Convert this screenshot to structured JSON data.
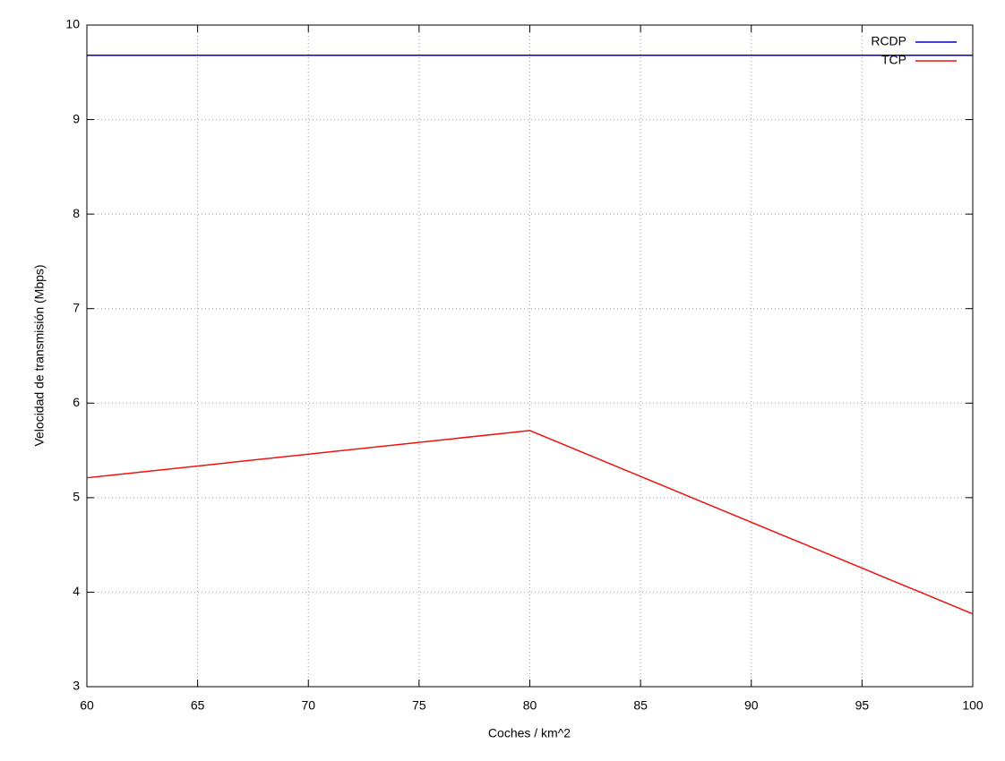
{
  "chart_data": {
    "type": "line",
    "x_label": "Coches / km^2",
    "y_label": "Velocidad de transmisión (Mbps)",
    "x": [
      60,
      80,
      100
    ],
    "series": [
      {
        "name": "RCDP",
        "color": "#0000cc",
        "values": [
          9.68,
          9.68,
          9.68
        ]
      },
      {
        "name": "TCP",
        "color": "#ee1111",
        "values": [
          5.21,
          5.71,
          3.77
        ]
      }
    ],
    "xlim": [
      60,
      100
    ],
    "xticks": [
      60,
      65,
      70,
      75,
      80,
      85,
      90,
      95,
      100
    ],
    "ylim": [
      3,
      10
    ],
    "yticks": [
      3,
      4,
      5,
      6,
      7,
      8,
      9,
      10
    ],
    "grid": true,
    "legend": "top-right"
  }
}
